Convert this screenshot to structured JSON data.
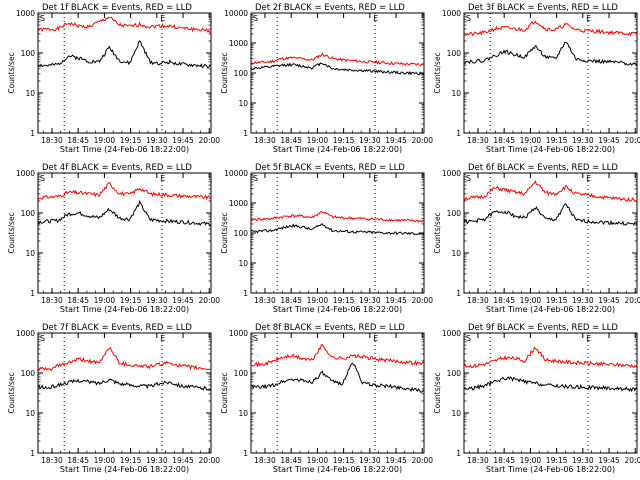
{
  "colors": {
    "events": "#000000",
    "lld": "#ff0000",
    "axis": "#000000",
    "background": "#ffffff"
  },
  "chart_data": [
    {
      "type": "line",
      "title": "Det 1f  BLACK = Events, RED = LLD",
      "xlabel": "Start Time (24-Feb-06 18:22:00)",
      "ylabel": "Counts/sec",
      "x_tick_labels": [
        "18:30",
        "18:45",
        "19:00",
        "19:15",
        "19:30",
        "19:45",
        "20:00"
      ],
      "y_tick_labels": [
        "1",
        "10",
        "100",
        "1000"
      ],
      "ylim": [
        1,
        1000
      ],
      "yscale": "log",
      "x_range_minutes_after_start": [
        0,
        99
      ],
      "vertical_dotted_lines_at": [
        "18:37",
        "19:33"
      ],
      "corner_markers": [
        "S",
        "E"
      ],
      "series": [
        {
          "color": "#ff0000",
          "approx_values": [
            380,
            390,
            400,
            560,
            470,
            450,
            600,
            780,
            500,
            460,
            520,
            450,
            480,
            470,
            420,
            400,
            380,
            350
          ]
        },
        {
          "color": "#000000",
          "approx_values": [
            50,
            48,
            52,
            85,
            75,
            62,
            60,
            140,
            65,
            55,
            200,
            60,
            55,
            60,
            52,
            50,
            48,
            45
          ]
        }
      ]
    },
    {
      "type": "line",
      "title": "Det 2f  BLACK = Events, RED = LLD",
      "xlabel": "Start Time (24-Feb-06 18:22:00)",
      "ylabel": "Counts/sec",
      "x_tick_labels": [
        "18:30",
        "18:45",
        "19:00",
        "19:15",
        "19:30",
        "19:45",
        "20:00"
      ],
      "y_tick_labels": [
        "1",
        "10",
        "100",
        "1000",
        "10000"
      ],
      "ylim": [
        1,
        10000
      ],
      "yscale": "log",
      "x_range_minutes_after_start": [
        0,
        99
      ],
      "vertical_dotted_lines_at": [
        "18:37",
        "19:33"
      ],
      "corner_markers": [
        "S",
        "E"
      ],
      "series": [
        {
          "color": "#ff0000",
          "approx_values": [
            220,
            225,
            240,
            300,
            320,
            300,
            270,
            420,
            310,
            270,
            260,
            240,
            230,
            220,
            210,
            200,
            195,
            190
          ]
        },
        {
          "color": "#000000",
          "approx_values": [
            140,
            150,
            160,
            180,
            190,
            170,
            150,
            220,
            140,
            130,
            125,
            120,
            115,
            110,
            105,
            100,
            98,
            95
          ]
        }
      ]
    },
    {
      "type": "line",
      "title": "Det 3f  BLACK = Events, RED = LLD",
      "xlabel": "Start Time (24-Feb-06 18:22:00)",
      "ylabel": "Counts/sec",
      "x_tick_labels": [
        "18:30",
        "18:45",
        "19:00",
        "19:15",
        "19:30",
        "19:45",
        "20:00"
      ],
      "y_tick_labels": [
        "1",
        "10",
        "100",
        "1000"
      ],
      "ylim": [
        1,
        1000
      ],
      "yscale": "log",
      "x_range_minutes_after_start": [
        0,
        99
      ],
      "vertical_dotted_lines_at": [
        "18:37",
        "19:33"
      ],
      "corner_markers": [
        "S",
        "E"
      ],
      "series": [
        {
          "color": "#ff0000",
          "approx_values": [
            290,
            300,
            320,
            400,
            430,
            400,
            380,
            650,
            400,
            380,
            520,
            380,
            360,
            350,
            330,
            320,
            310,
            300
          ]
        },
        {
          "color": "#000000",
          "approx_values": [
            60,
            62,
            65,
            85,
            110,
            90,
            80,
            150,
            80,
            70,
            200,
            70,
            65,
            62,
            60,
            58,
            55,
            52
          ]
        }
      ]
    },
    {
      "type": "line",
      "title": "Det 4f  BLACK = Events, RED = LLD",
      "xlabel": "Start Time (24-Feb-06 18:22:00)",
      "ylabel": "Counts/sec",
      "x_tick_labels": [
        "18:30",
        "18:45",
        "19:00",
        "19:15",
        "19:30",
        "19:45",
        "20:00"
      ],
      "y_tick_labels": [
        "1",
        "10",
        "100",
        "1000"
      ],
      "ylim": [
        1,
        1000
      ],
      "yscale": "log",
      "x_range_minutes_after_start": [
        0,
        99
      ],
      "vertical_dotted_lines_at": [
        "18:37",
        "19:33"
      ],
      "corner_markers": [
        "S",
        "E"
      ],
      "series": [
        {
          "color": "#ff0000",
          "approx_values": [
            240,
            250,
            260,
            330,
            320,
            300,
            280,
            550,
            310,
            290,
            420,
            300,
            290,
            280,
            270,
            260,
            250,
            240
          ]
        },
        {
          "color": "#000000",
          "approx_values": [
            60,
            62,
            65,
            95,
            100,
            85,
            75,
            125,
            75,
            70,
            180,
            68,
            65,
            62,
            60,
            58,
            55,
            52
          ]
        }
      ]
    },
    {
      "type": "line",
      "title": "Det 5f  BLACK = Events, RED = LLD",
      "xlabel": "Start Time (24-Feb-06 18:22:00)",
      "ylabel": "Counts/sec",
      "x_tick_labels": [
        "18:30",
        "18:45",
        "19:00",
        "19:15",
        "19:30",
        "19:45",
        "20:00"
      ],
      "y_tick_labels": [
        "1",
        "10",
        "100",
        "1000",
        "10000"
      ],
      "ylim": [
        1,
        10000
      ],
      "yscale": "log",
      "x_range_minutes_after_start": [
        0,
        99
      ],
      "vertical_dotted_lines_at": [
        "18:37",
        "19:33"
      ],
      "corner_markers": [
        "S",
        "E"
      ],
      "series": [
        {
          "color": "#ff0000",
          "approx_values": [
            280,
            290,
            300,
            340,
            380,
            360,
            330,
            520,
            340,
            320,
            310,
            300,
            290,
            280,
            270,
            260,
            255,
            250
          ]
        },
        {
          "color": "#000000",
          "approx_values": [
            110,
            115,
            120,
            145,
            175,
            160,
            130,
            200,
            120,
            115,
            110,
            108,
            105,
            102,
            100,
            98,
            96,
            95
          ]
        }
      ]
    },
    {
      "type": "line",
      "title": "Det 6f  BLACK = Events, RED = LLD",
      "xlabel": "Start Time (24-Feb-06 18:22:00)",
      "ylabel": "Counts/sec",
      "x_tick_labels": [
        "18:30",
        "18:45",
        "19:00",
        "19:15",
        "19:30",
        "19:45",
        "20:00"
      ],
      "y_tick_labels": [
        "1",
        "10",
        "100",
        "1000"
      ],
      "ylim": [
        1,
        1000
      ],
      "yscale": "log",
      "x_range_minutes_after_start": [
        0,
        99
      ],
      "vertical_dotted_lines_at": [
        "18:37",
        "19:33"
      ],
      "corner_markers": [
        "S",
        "E"
      ],
      "series": [
        {
          "color": "#ff0000",
          "approx_values": [
            230,
            240,
            260,
            420,
            380,
            330,
            300,
            600,
            320,
            300,
            450,
            300,
            280,
            260,
            240,
            230,
            220,
            210
          ]
        },
        {
          "color": "#000000",
          "approx_values": [
            60,
            62,
            70,
            105,
            110,
            85,
            75,
            140,
            70,
            68,
            170,
            65,
            62,
            60,
            58,
            56,
            54,
            52
          ]
        }
      ]
    },
    {
      "type": "line",
      "title": "Det 7f  BLACK = Events, RED = LLD",
      "xlabel": "Start Time (24-Feb-06 18:22:00)",
      "ylabel": "Counts/sec",
      "x_tick_labels": [
        "18:30",
        "18:45",
        "19:00",
        "19:15",
        "19:30",
        "19:45",
        "20:00"
      ],
      "y_tick_labels": [
        "1",
        "10",
        "100",
        "1000"
      ],
      "ylim": [
        1,
        1000
      ],
      "yscale": "log",
      "x_range_minutes_after_start": [
        0,
        99
      ],
      "vertical_dotted_lines_at": [
        "18:37",
        "19:33"
      ],
      "corner_markers": [
        "S",
        "E"
      ],
      "series": [
        {
          "color": "#ff0000",
          "approx_values": [
            130,
            120,
            150,
            180,
            220,
            200,
            170,
            450,
            180,
            160,
            150,
            145,
            165,
            180,
            150,
            140,
            130,
            125
          ]
        },
        {
          "color": "#000000",
          "approx_values": [
            45,
            42,
            50,
            58,
            65,
            60,
            55,
            70,
            55,
            50,
            48,
            46,
            55,
            60,
            48,
            45,
            42,
            40
          ]
        }
      ]
    },
    {
      "type": "line",
      "title": "Det 8f  BLACK = Events, RED = LLD",
      "xlabel": "Start Time (24-Feb-06 18:22:00)",
      "ylabel": "Counts/sec",
      "x_tick_labels": [
        "18:30",
        "18:45",
        "19:00",
        "19:15",
        "19:30",
        "19:45",
        "20:00"
      ],
      "y_tick_labels": [
        "1",
        "10",
        "100",
        "1000"
      ],
      "ylim": [
        1,
        1000
      ],
      "yscale": "log",
      "x_range_minutes_after_start": [
        0,
        99
      ],
      "vertical_dotted_lines_at": [
        "18:37",
        "19:33"
      ],
      "corner_markers": [
        "S",
        "E"
      ],
      "series": [
        {
          "color": "#ff0000",
          "approx_values": [
            170,
            160,
            190,
            240,
            270,
            230,
            210,
            500,
            240,
            230,
            270,
            250,
            230,
            210,
            200,
            190,
            180,
            170
          ]
        },
        {
          "color": "#000000",
          "approx_values": [
            45,
            44,
            48,
            60,
            70,
            65,
            60,
            100,
            60,
            55,
            190,
            55,
            50,
            48,
            45,
            42,
            38,
            35
          ]
        }
      ]
    },
    {
      "type": "line",
      "title": "Det 9f  BLACK = Events, RED = LLD",
      "xlabel": "Start Time (24-Feb-06 18:22:00)",
      "ylabel": "Counts/sec",
      "x_tick_labels": [
        "18:30",
        "18:45",
        "19:00",
        "19:15",
        "19:30",
        "19:45",
        "20:00"
      ],
      "y_tick_labels": [
        "1",
        "10",
        "100",
        "1000"
      ],
      "ylim": [
        1,
        1000
      ],
      "yscale": "log",
      "x_range_minutes_after_start": [
        0,
        99
      ],
      "vertical_dotted_lines_at": [
        "18:37",
        "19:33"
      ],
      "corner_markers": [
        "S",
        "E"
      ],
      "series": [
        {
          "color": "#ff0000",
          "approx_values": [
            150,
            150,
            165,
            200,
            240,
            230,
            200,
            450,
            210,
            200,
            190,
            180,
            175,
            170,
            165,
            160,
            155,
            150
          ]
        },
        {
          "color": "#000000",
          "approx_values": [
            40,
            42,
            48,
            60,
            75,
            70,
            60,
            55,
            50,
            48,
            46,
            45,
            44,
            43,
            42,
            41,
            40,
            38
          ]
        }
      ]
    }
  ]
}
